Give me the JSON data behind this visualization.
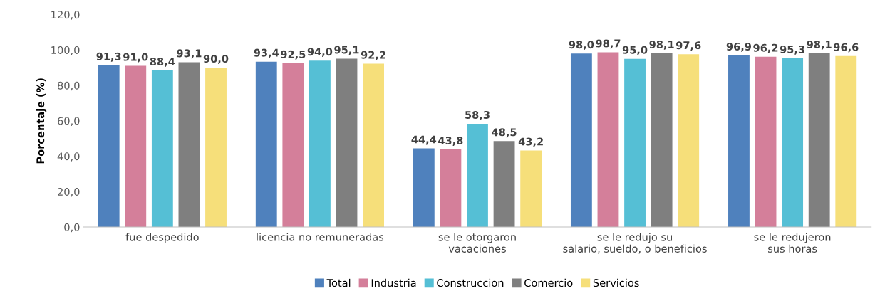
{
  "chart_data": {
    "type": "bar",
    "ylabel": "Porcentaje (%)",
    "categories": [
      "fue despedido",
      "licencia no remuneradas",
      "se le otorgaron\nvacaciones",
      "se le redujo su\nsalario, sueldo, o beneficios",
      "se le redujeron\nsus horas"
    ],
    "series": [
      {
        "name": "Total",
        "color": "#4f81bd",
        "values": [
          91.3,
          93.4,
          44.4,
          98.0,
          96.9
        ],
        "value_labels": [
          "91,3",
          "93,4",
          "44,4",
          "98,0",
          "96,9"
        ]
      },
      {
        "name": "Industria",
        "color": "#d47f9a",
        "values": [
          91.0,
          92.5,
          43.8,
          98.7,
          96.2
        ],
        "value_labels": [
          "91,0",
          "92,5",
          "43,8",
          "98,7",
          "96,2"
        ]
      },
      {
        "name": "Construccion",
        "color": "#55bfd5",
        "values": [
          88.4,
          94.0,
          58.3,
          95.0,
          95.3
        ],
        "value_labels": [
          "88,4",
          "94,0",
          "58,3",
          "95,0",
          "95,3"
        ]
      },
      {
        "name": "Comercio",
        "color": "#7f7f7f",
        "values": [
          93.1,
          95.1,
          48.5,
          98.1,
          98.1
        ],
        "value_labels": [
          "93,1",
          "95,1",
          "48,5",
          "98,1",
          "98,1"
        ]
      },
      {
        "name": "Servicios",
        "color": "#f6df7a",
        "values": [
          90.0,
          92.2,
          43.2,
          97.6,
          96.6
        ],
        "value_labels": [
          "90,0",
          "92,2",
          "43,2",
          "97,6",
          "96,6"
        ]
      }
    ],
    "ylim": [
      0,
      120
    ],
    "yticks": [
      {
        "value": 0,
        "label": "0,0"
      },
      {
        "value": 20,
        "label": "20,0"
      },
      {
        "value": 40,
        "label": "40,0"
      },
      {
        "value": 60,
        "label": "60,0"
      },
      {
        "value": 80,
        "label": "80,0"
      },
      {
        "value": 100,
        "label": "100,0"
      },
      {
        "value": 120,
        "label": "120,0"
      }
    ],
    "grid": false,
    "legend": "bottom"
  }
}
